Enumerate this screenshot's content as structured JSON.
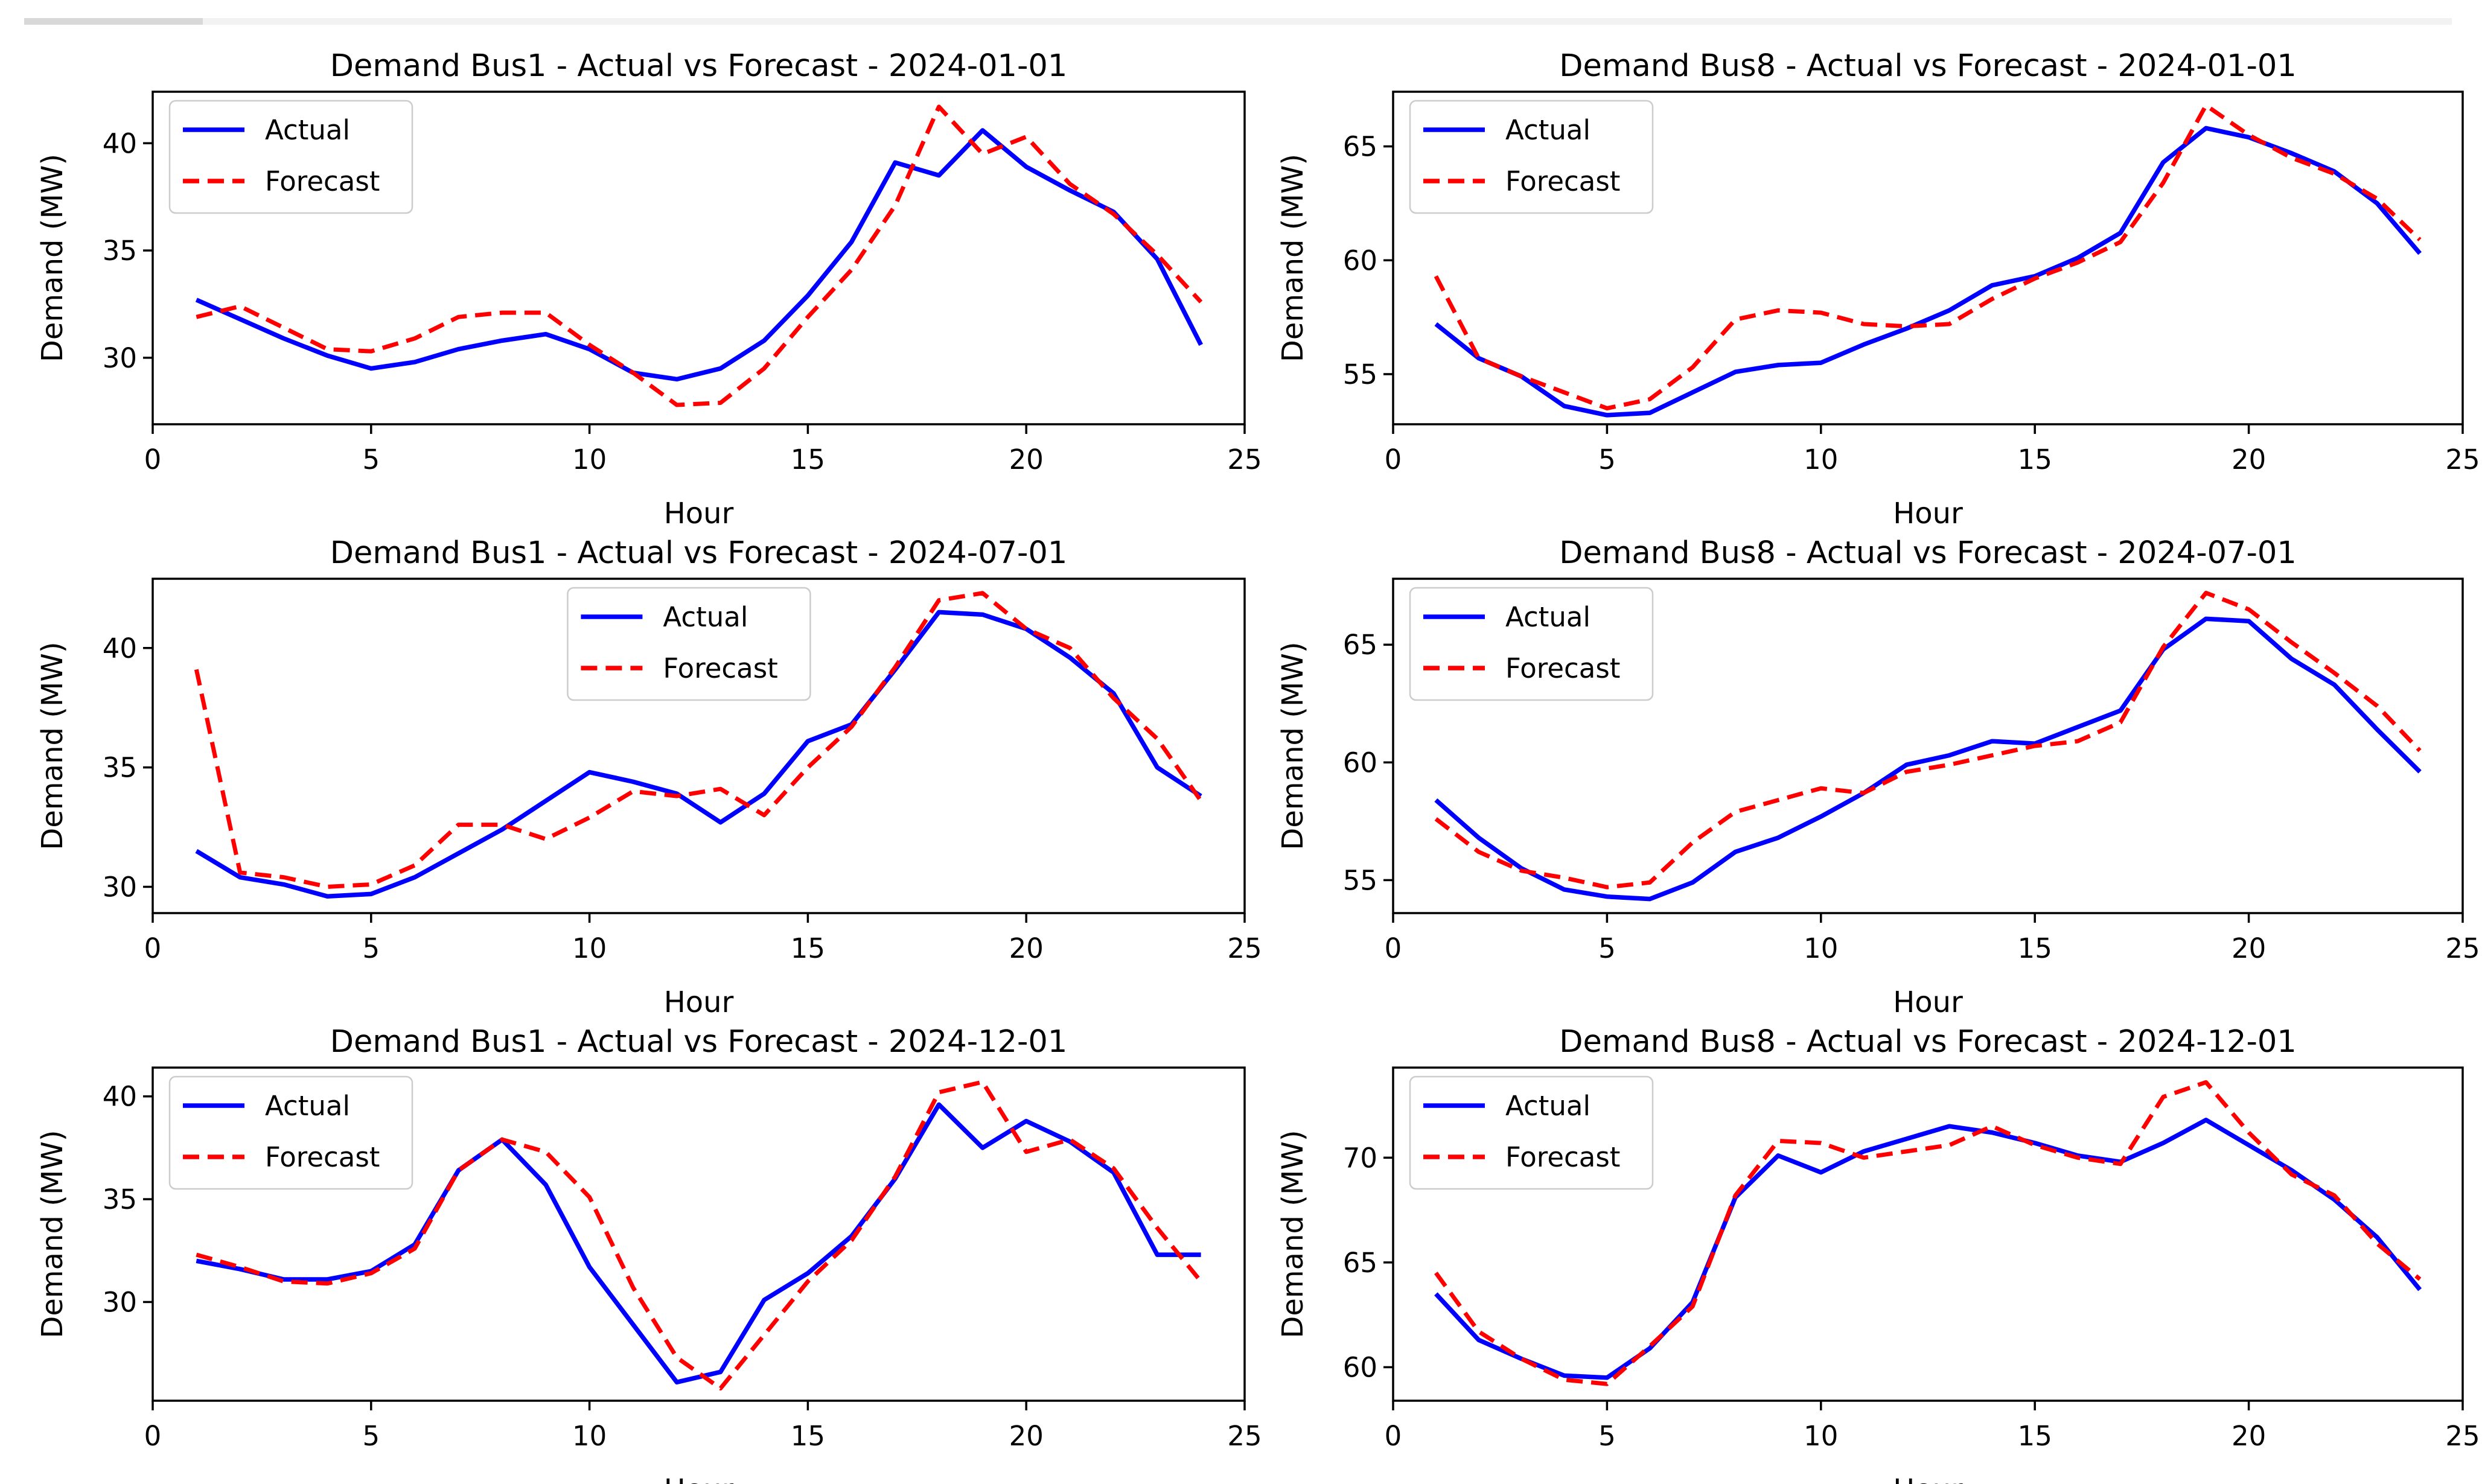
{
  "figure": {
    "background": "#ffffff",
    "rows": 3,
    "cols": 2
  },
  "scrollbar": {
    "track_color": "#f2f2f2",
    "thumb_color": "#d8d8d8"
  },
  "colors": {
    "actual": "#0000ff",
    "forecast": "#ff0000",
    "axis": "#000000",
    "legend_border": "#cccccc"
  },
  "legend": {
    "actual_label": "Actual",
    "forecast_label": "Forecast"
  },
  "chart_data": [
    {
      "type": "line",
      "title": "Demand Bus1 - Actual vs Forecast - 2024-01-01",
      "xlabel": "Hour",
      "ylabel": "Demand (MW)",
      "x": [
        1,
        2,
        3,
        4,
        5,
        6,
        7,
        8,
        9,
        10,
        11,
        12,
        13,
        14,
        15,
        16,
        17,
        18,
        19,
        20,
        21,
        22,
        23,
        24
      ],
      "xlim": [
        0,
        25
      ],
      "xticks": [
        0,
        5,
        10,
        15,
        20,
        25
      ],
      "ylim": [
        26.9,
        42.4
      ],
      "yticks": [
        30,
        35,
        40
      ],
      "grid": false,
      "legend_loc": "upper_left",
      "series": [
        {
          "name": "Actual",
          "color": "#0000ff",
          "style": "solid",
          "values": [
            32.7,
            31.8,
            30.9,
            30.1,
            29.5,
            29.8,
            30.4,
            30.8,
            31.1,
            30.4,
            29.3,
            29.0,
            29.5,
            30.8,
            32.9,
            35.4,
            39.1,
            38.5,
            40.6,
            38.9,
            37.8,
            36.8,
            34.6,
            30.6
          ]
        },
        {
          "name": "Forecast",
          "color": "#ff0000",
          "style": "dashed",
          "values": [
            31.9,
            32.4,
            31.4,
            30.4,
            30.3,
            30.9,
            31.9,
            32.1,
            32.1,
            30.6,
            29.3,
            27.8,
            27.9,
            29.5,
            31.9,
            34.1,
            37.1,
            41.7,
            39.5,
            40.3,
            38.1,
            36.7,
            34.8,
            32.6
          ]
        }
      ]
    },
    {
      "type": "line",
      "title": "Demand Bus8 - Actual vs Forecast - 2024-01-01",
      "xlabel": "Hour",
      "ylabel": "Demand (MW)",
      "x": [
        1,
        2,
        3,
        4,
        5,
        6,
        7,
        8,
        9,
        10,
        11,
        12,
        13,
        14,
        15,
        16,
        17,
        18,
        19,
        20,
        21,
        22,
        23,
        24
      ],
      "xlim": [
        0,
        25
      ],
      "xticks": [
        0,
        5,
        10,
        15,
        20,
        25
      ],
      "ylim": [
        52.8,
        67.4
      ],
      "yticks": [
        55,
        60,
        65
      ],
      "grid": false,
      "legend_loc": "upper_left",
      "series": [
        {
          "name": "Actual",
          "color": "#0000ff",
          "style": "solid",
          "values": [
            57.2,
            55.7,
            54.9,
            53.6,
            53.2,
            53.3,
            54.2,
            55.1,
            55.4,
            55.5,
            56.3,
            57.0,
            57.8,
            58.9,
            59.3,
            60.1,
            61.2,
            64.3,
            65.8,
            65.4,
            64.7,
            63.9,
            62.5,
            60.3
          ]
        },
        {
          "name": "Forecast",
          "color": "#ff0000",
          "style": "dashed",
          "values": [
            59.3,
            55.7,
            54.9,
            54.2,
            53.5,
            53.9,
            55.3,
            57.4,
            57.8,
            57.7,
            57.2,
            57.1,
            57.2,
            58.3,
            59.2,
            59.9,
            60.8,
            63.4,
            66.8,
            65.5,
            64.5,
            63.8,
            62.7,
            60.9
          ]
        }
      ]
    },
    {
      "type": "line",
      "title": "Demand Bus1 - Actual vs Forecast - 2024-07-01",
      "xlabel": "Hour",
      "ylabel": "Demand (MW)",
      "x": [
        1,
        2,
        3,
        4,
        5,
        6,
        7,
        8,
        9,
        10,
        11,
        12,
        13,
        14,
        15,
        16,
        17,
        18,
        19,
        20,
        21,
        22,
        23,
        24
      ],
      "xlim": [
        0,
        25
      ],
      "xticks": [
        0,
        5,
        10,
        15,
        20,
        25
      ],
      "ylim": [
        28.9,
        42.9
      ],
      "yticks": [
        30,
        35,
        40
      ],
      "grid": false,
      "legend_loc": "upper_center",
      "series": [
        {
          "name": "Actual",
          "color": "#0000ff",
          "style": "solid",
          "values": [
            31.5,
            30.4,
            30.1,
            29.6,
            29.7,
            30.4,
            31.4,
            32.4,
            33.6,
            34.8,
            34.4,
            33.9,
            32.7,
            33.9,
            36.1,
            36.8,
            39.1,
            41.5,
            41.4,
            40.8,
            39.6,
            38.1,
            35.0,
            33.8
          ]
        },
        {
          "name": "Forecast",
          "color": "#ff0000",
          "style": "dashed",
          "values": [
            39.1,
            30.6,
            30.4,
            30.0,
            30.1,
            30.9,
            32.6,
            32.6,
            32.0,
            32.9,
            34.0,
            33.8,
            34.1,
            33.0,
            35.0,
            36.7,
            39.2,
            42.0,
            42.3,
            40.8,
            40.0,
            37.9,
            36.2,
            33.6
          ]
        }
      ]
    },
    {
      "type": "line",
      "title": "Demand Bus8 - Actual vs Forecast - 2024-07-01",
      "xlabel": "Hour",
      "ylabel": "Demand (MW)",
      "x": [
        1,
        2,
        3,
        4,
        5,
        6,
        7,
        8,
        9,
        10,
        11,
        12,
        13,
        14,
        15,
        16,
        17,
        18,
        19,
        20,
        21,
        22,
        23,
        24
      ],
      "xlim": [
        0,
        25
      ],
      "xticks": [
        0,
        5,
        10,
        15,
        20,
        25
      ],
      "ylim": [
        53.6,
        67.8
      ],
      "yticks": [
        55,
        60,
        65
      ],
      "grid": false,
      "legend_loc": "upper_left",
      "series": [
        {
          "name": "Actual",
          "color": "#0000ff",
          "style": "solid",
          "values": [
            58.4,
            56.8,
            55.5,
            54.6,
            54.3,
            54.2,
            54.9,
            56.2,
            56.8,
            57.7,
            58.7,
            59.9,
            60.3,
            60.9,
            60.8,
            61.5,
            62.2,
            64.8,
            66.1,
            66.0,
            64.4,
            63.3,
            61.4,
            59.6
          ]
        },
        {
          "name": "Forecast",
          "color": "#ff0000",
          "style": "dashed",
          "values": [
            57.6,
            56.2,
            55.4,
            55.1,
            54.7,
            54.9,
            56.6,
            57.9,
            58.4,
            58.9,
            58.7,
            59.6,
            59.9,
            60.3,
            60.7,
            60.9,
            61.7,
            64.9,
            67.2,
            66.5,
            65.1,
            63.8,
            62.4,
            60.5
          ]
        }
      ]
    },
    {
      "type": "line",
      "title": "Demand Bus1 - Actual vs Forecast - 2024-12-01",
      "xlabel": "Hour",
      "ylabel": "Demand (MW)",
      "x": [
        1,
        2,
        3,
        4,
        5,
        6,
        7,
        8,
        9,
        10,
        11,
        12,
        13,
        14,
        15,
        16,
        17,
        18,
        19,
        20,
        21,
        22,
        23,
        24
      ],
      "xlim": [
        0,
        25
      ],
      "xticks": [
        0,
        5,
        10,
        15,
        20,
        25
      ],
      "ylim": [
        25.2,
        41.4
      ],
      "yticks": [
        30,
        35,
        40
      ],
      "grid": false,
      "legend_loc": "upper_left",
      "series": [
        {
          "name": "Actual",
          "color": "#0000ff",
          "style": "solid",
          "values": [
            32.0,
            31.6,
            31.1,
            31.1,
            31.5,
            32.8,
            36.4,
            37.9,
            35.7,
            31.7,
            28.9,
            26.1,
            26.6,
            30.1,
            31.4,
            33.2,
            36.0,
            39.6,
            37.5,
            38.8,
            37.8,
            36.3,
            32.3,
            32.3
          ]
        },
        {
          "name": "Forecast",
          "color": "#ff0000",
          "style": "dashed",
          "values": [
            32.3,
            31.7,
            31.0,
            30.9,
            31.4,
            32.6,
            36.4,
            37.9,
            37.3,
            35.1,
            30.7,
            27.3,
            25.8,
            28.4,
            31.0,
            33.0,
            36.1,
            40.2,
            40.7,
            37.3,
            37.9,
            36.5,
            33.6,
            31.0
          ]
        }
      ]
    },
    {
      "type": "line",
      "title": "Demand Bus8 - Actual vs Forecast - 2024-12-01",
      "xlabel": "Hour",
      "ylabel": "Demand (MW)",
      "x": [
        1,
        2,
        3,
        4,
        5,
        6,
        7,
        8,
        9,
        10,
        11,
        12,
        13,
        14,
        15,
        16,
        17,
        18,
        19,
        20,
        21,
        22,
        23,
        24
      ],
      "xlim": [
        0,
        25
      ],
      "xticks": [
        0,
        5,
        10,
        15,
        20,
        25
      ],
      "ylim": [
        58.4,
        74.3
      ],
      "yticks": [
        60,
        65,
        70
      ],
      "grid": false,
      "legend_loc": "upper_left",
      "series": [
        {
          "name": "Actual",
          "color": "#0000ff",
          "style": "solid",
          "values": [
            63.5,
            61.3,
            60.4,
            59.6,
            59.5,
            60.9,
            63.1,
            68.1,
            70.1,
            69.3,
            70.3,
            70.9,
            71.5,
            71.2,
            70.7,
            70.1,
            69.8,
            70.7,
            71.8,
            70.6,
            69.4,
            68.0,
            66.2,
            63.7
          ]
        },
        {
          "name": "Forecast",
          "color": "#ff0000",
          "style": "dashed",
          "values": [
            64.5,
            61.7,
            60.4,
            59.4,
            59.2,
            61.0,
            62.9,
            68.2,
            70.8,
            70.7,
            70.0,
            70.3,
            70.6,
            71.5,
            70.6,
            70.0,
            69.7,
            72.9,
            73.6,
            71.2,
            69.2,
            68.2,
            65.9,
            64.2
          ]
        }
      ]
    }
  ]
}
